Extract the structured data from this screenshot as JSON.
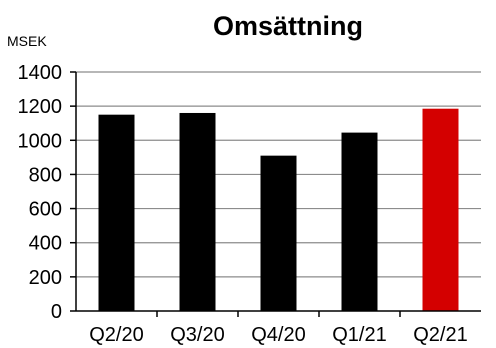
{
  "chart_data": {
    "type": "bar",
    "title": "Omsättning",
    "ylabel": "MSEK",
    "xlabel": "",
    "categories": [
      "Q2/20",
      "Q3/20",
      "Q4/20",
      "Q1/21",
      "Q2/21"
    ],
    "values": [
      1150,
      1160,
      910,
      1045,
      1185
    ],
    "bar_colors": [
      "#000000",
      "#000000",
      "#000000",
      "#000000",
      "#d40000"
    ],
    "ylim": [
      0,
      1400
    ],
    "yticks": [
      "0",
      "200",
      "400",
      "600",
      "800",
      "1000",
      "1200",
      "1400"
    ],
    "grid": true,
    "grid_color": "#8c8c8c"
  }
}
